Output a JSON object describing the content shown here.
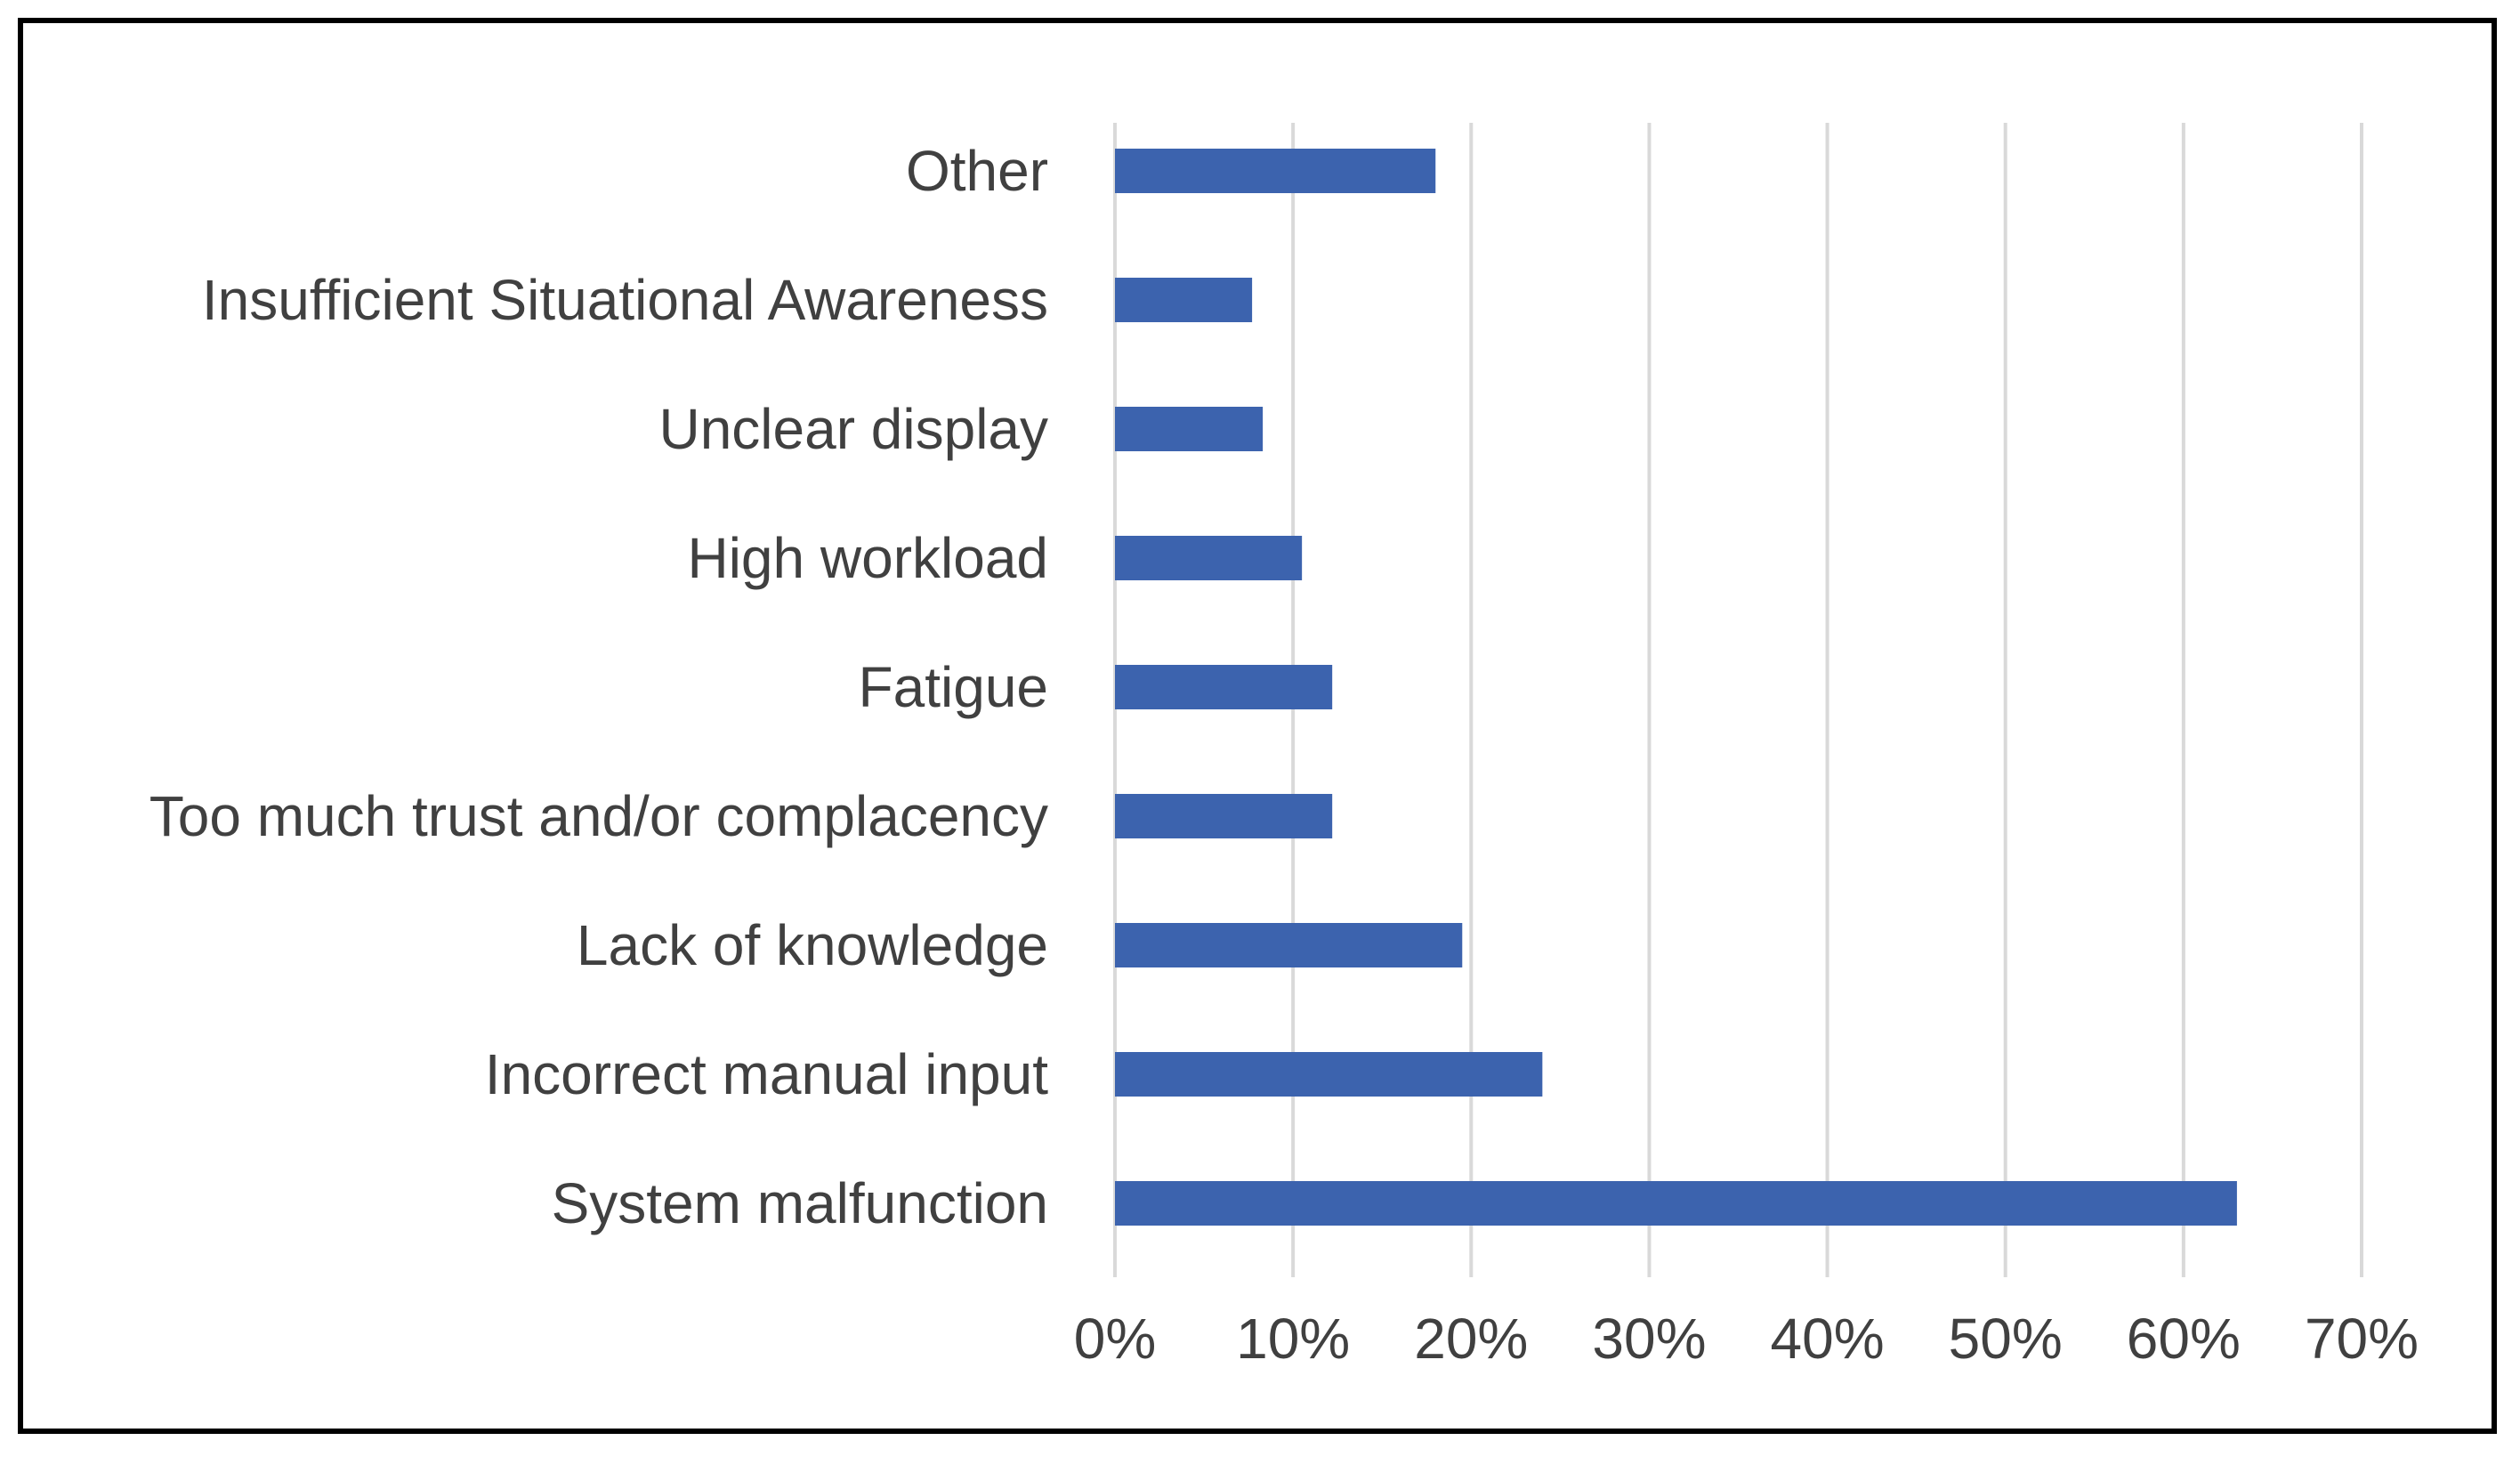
{
  "chart_data": {
    "type": "bar",
    "orientation": "horizontal",
    "title": "",
    "xlabel": "",
    "ylabel": "",
    "categories": [
      "Other",
      "Insufficient Situational Awareness",
      "Unclear display",
      "High workload",
      "Fatigue",
      "Too much trust and/or complacency",
      "Lack of knowledge",
      "Incorrect manual input",
      "System malfunction"
    ],
    "values": [
      0.18,
      0.077,
      0.083,
      0.105,
      0.122,
      0.122,
      0.195,
      0.24,
      0.63
    ],
    "xlim": [
      0,
      0.7
    ],
    "xticks": [
      0,
      0.1,
      0.2,
      0.3,
      0.4,
      0.5,
      0.6,
      0.7
    ],
    "xtick_labels": [
      "0%",
      "10%",
      "20%",
      "30%",
      "40%",
      "50%",
      "60%",
      "70%"
    ],
    "grid": "vertical",
    "legend": "none",
    "bar_color": "#3C63AE",
    "grid_color": "#D9D9D9",
    "text_color": "#404040"
  }
}
